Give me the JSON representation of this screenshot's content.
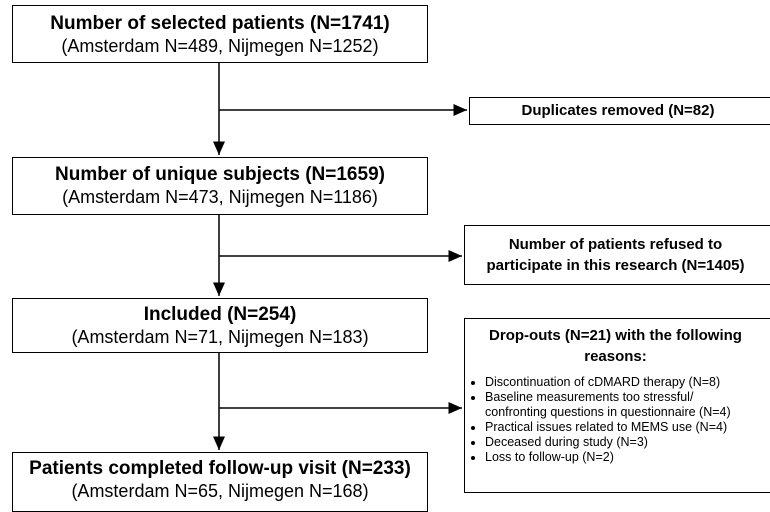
{
  "nodes": [
    {
      "title": "Number of selected patients (N=1741)",
      "subtitle": "(Amsterdam N=489, Nijmegen N=1252)"
    },
    {
      "title": "Number of unique subjects (N=1659)",
      "subtitle": "(Amsterdam N=473, Nijmegen N=1186)"
    },
    {
      "title": "Included (N=254)",
      "subtitle": "(Amsterdam N=71, Nijmegen N=183)"
    },
    {
      "title": "Patients completed follow-up visit (N=233)",
      "subtitle": "(Amsterdam N=65, Nijmegen N=168)"
    }
  ],
  "exclusions": [
    {
      "lines": [
        "Duplicates removed (N=82)"
      ]
    },
    {
      "lines": [
        "Number of patients refused to",
        "participate in this research (N=1405)"
      ]
    },
    {
      "lines": [
        "Drop-outs (N=21) with the following",
        "reasons:"
      ],
      "bullets": [
        [
          "Discontinuation of cDMARD therapy (N=8)"
        ],
        [
          "Baseline measurements too stressful/",
          "confronting questions in questionnaire (N=4)"
        ],
        [
          "Practical issues related to MEMS use (N=4)"
        ],
        [
          "Deceased during study (N=3)"
        ],
        [
          "Loss to follow-up (N=2)"
        ]
      ]
    }
  ]
}
